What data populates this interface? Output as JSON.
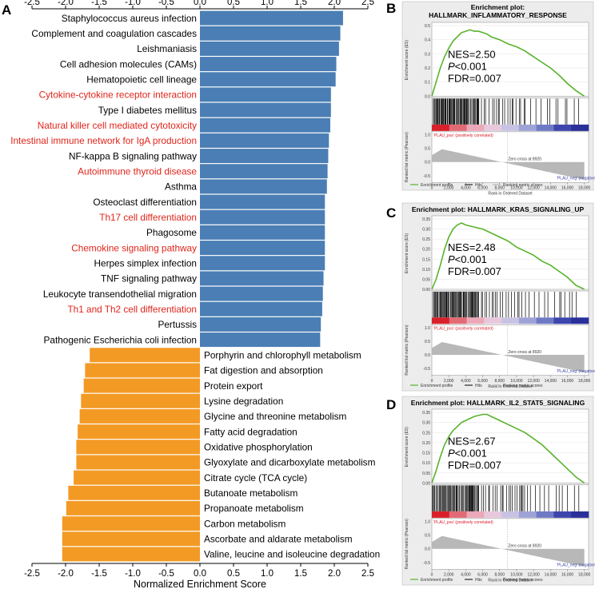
{
  "panel_labels": {
    "a": "A",
    "b": "B",
    "c": "C",
    "d": "D"
  },
  "chart_data": [
    {
      "type": "bar",
      "orientation": "horizontal",
      "panel": "A",
      "xlabel": "Normalized Enrichment Score",
      "xlim": [
        -2.5,
        2.5
      ],
      "xticks": [
        "-2.5",
        "-2.0",
        "-1.5",
        "-1.0",
        "-0.5",
        "0.0",
        "0.5",
        "1.0",
        "1.5",
        "2.0",
        "2.5"
      ],
      "categories": [
        "Staphylococcus aureus infection",
        "Complement and coagulation cascades",
        "Leishmaniasis",
        "Cell adhesion molecules (CAMs)",
        "Hematopoietic cell lineage",
        "Cytokine-cytokine receptor interaction",
        "Type I diabetes mellitus",
        "Natural killer cell mediated cytotoxicity",
        "Intestinal immune network for IgA production",
        "NF-kappa B signaling pathway",
        "Autoimmune thyroid disease",
        "Asthma",
        "Osteoclast differentiation",
        "Th17 cell differentiation",
        "Phagosome",
        "Chemokine signaling pathway",
        "Herpes simplex infection",
        "TNF signaling pathway",
        "Leukocyte transendothelial migration",
        "Th1 and Th2 cell differentiation",
        "Pertussis",
        "Pathogenic Escherichia coli infection",
        "Porphyrin and chlorophyll metabolism",
        "Fat digestion and absorption",
        "Protein export",
        "Lysine degradation",
        "Glycine and threonine metabolism",
        "Fatty acid degradation",
        "Oxidative phosphorylation",
        "Glyoxylate and dicarboxylate metabolism",
        "Citrate cycle (TCA cycle)",
        "Butanoate metabolism",
        "Propanoate metabolism",
        "Carbon metabolism",
        "Ascorbate and aldarate metabolism",
        "Valine, leucine and isoleucine degradation"
      ],
      "values": [
        2.13,
        2.09,
        2.07,
        2.03,
        2.02,
        1.95,
        1.95,
        1.94,
        1.92,
        1.91,
        1.9,
        1.89,
        1.86,
        1.86,
        1.86,
        1.86,
        1.86,
        1.84,
        1.83,
        1.82,
        1.8,
        1.79,
        -1.64,
        -1.71,
        -1.73,
        -1.77,
        -1.79,
        -1.82,
        -1.84,
        -1.84,
        -1.88,
        -1.96,
        -1.99,
        -2.05,
        -2.05,
        -2.05
      ],
      "highlighted_red": [
        "Cytokine-cytokine receptor interaction",
        "Natural killer cell mediated cytotoxicity",
        "Intestinal immune network for IgA production",
        "Autoimmune thyroid disease",
        "Th17 cell differentiation",
        "Chemokine signaling pathway",
        "Th1 and Th2 cell differentiation"
      ],
      "colors": {
        "positive": "#4a7eb5",
        "negative": "#f39a25",
        "highlight_text": "#e0251b",
        "normal_text": "#000000"
      }
    },
    {
      "type": "line",
      "panel": "B",
      "title": "Enrichment plot:",
      "subtitle": "HALLMARK_INFLAMMATORY_RESPONSE",
      "ylabel": "Enrichment score (ES)",
      "yticks": [
        "0.5",
        "0.4",
        "0.3",
        "0.2",
        "0.1",
        "0.0"
      ],
      "ylim": [
        0,
        0.5
      ],
      "x": [
        0,
        500,
        1000,
        1500,
        2000,
        2500,
        3000,
        3500,
        4000,
        4500,
        5000,
        5500,
        6000,
        6500,
        7000,
        8000,
        9000,
        10000,
        11000,
        12000,
        13000,
        14000,
        15000,
        16000,
        17000,
        18000
      ],
      "y": [
        0,
        0.1,
        0.2,
        0.28,
        0.34,
        0.39,
        0.42,
        0.45,
        0.46,
        0.47,
        0.46,
        0.46,
        0.45,
        0.44,
        0.42,
        0.4,
        0.37,
        0.35,
        0.32,
        0.28,
        0.24,
        0.2,
        0.15,
        0.09,
        0.04,
        0
      ],
      "stats": {
        "nes": "NES=2.50",
        "p_prefix": "P",
        "p_value": "<0.001",
        "fdr": "FDR=0.007"
      },
      "pos_label": "'PLAU_pos' (positively correlated)",
      "neg_label": "'PLAU_neg' (negatively correlated)",
      "zero_cross": "Zero cross at 8920",
      "metric_ylabel": "Ranked list metric (Pearson)",
      "metric_yticks": [
        "1.0",
        "0.5",
        "0.0",
        "-0.5"
      ],
      "xlabel": "Rank in Ordered Dataset",
      "xticks": [
        "0",
        "2,000",
        "4,000",
        "6,000",
        "8,000",
        "10,000",
        "12,000",
        "14,000",
        "16,000",
        "18,000"
      ],
      "legend": [
        "Enrichment profile",
        "Hits",
        "Ranking metric scores"
      ]
    },
    {
      "type": "line",
      "panel": "C",
      "title": "Enrichment plot: HALLMARK_KRAS_SIGNALING_UP",
      "ylabel": "Enrichment score (ES)",
      "yticks": [
        "0.35",
        "0.30",
        "0.25",
        "0.20",
        "0.15",
        "0.10",
        "0.05",
        "0.00"
      ],
      "ylim": [
        0,
        0.35
      ],
      "x": [
        0,
        500,
        1000,
        1500,
        2000,
        2500,
        3000,
        3500,
        4000,
        5000,
        6000,
        7000,
        8000,
        9000,
        10000,
        11000,
        12000,
        13000,
        14000,
        15000,
        16000,
        17000,
        18000
      ],
      "y": [
        0,
        0.05,
        0.12,
        0.2,
        0.26,
        0.3,
        0.32,
        0.33,
        0.32,
        0.31,
        0.3,
        0.28,
        0.26,
        0.24,
        0.21,
        0.19,
        0.17,
        0.14,
        0.12,
        0.09,
        0.06,
        0.02,
        0
      ],
      "stats": {
        "nes": "NES=2.48",
        "p_prefix": "P",
        "p_value": "<0.001",
        "fdr": "FDR=0.007"
      },
      "pos_label": "'PLAU_pos' (positively correlated)",
      "neg_label": "'PLAU_neg' (negatively correlated)",
      "zero_cross": "Zero cross at 8920",
      "metric_ylabel": "Ranked list metric (Pearson)",
      "metric_yticks": [
        "1.0",
        "0.5",
        "0.0",
        "-0.5"
      ],
      "xlabel": "Rank in Ordered Dataset",
      "xticks": [
        "0",
        "2,000",
        "4,000",
        "6,000",
        "8,000",
        "10,000",
        "12,000",
        "14,000",
        "16,000",
        "18,000"
      ],
      "legend": [
        "Enrichment profile",
        "Hits",
        "Ranking metric scores"
      ]
    },
    {
      "type": "line",
      "panel": "D",
      "title": "Enrichment plot: HALLMARK_IL2_STAT5_SIGNALING",
      "ylabel": "Enrichment score (ES)",
      "yticks": [
        "0.35",
        "0.30",
        "0.25",
        "0.20",
        "0.15",
        "0.10",
        "0.05",
        "0.00"
      ],
      "ylim": [
        0,
        0.35
      ],
      "x": [
        0,
        500,
        1000,
        1500,
        2000,
        2500,
        3000,
        3500,
        4000,
        5000,
        6000,
        6500,
        7000,
        8000,
        9000,
        10000,
        11000,
        12000,
        13000,
        14000,
        15000,
        16000,
        17000,
        18000
      ],
      "y": [
        0,
        0.06,
        0.13,
        0.19,
        0.23,
        0.26,
        0.28,
        0.3,
        0.31,
        0.33,
        0.34,
        0.34,
        0.33,
        0.31,
        0.29,
        0.27,
        0.25,
        0.22,
        0.19,
        0.15,
        0.11,
        0.07,
        0.03,
        0
      ],
      "stats": {
        "nes": "NES=2.67",
        "p_prefix": "P",
        "p_value": "<0.001",
        "fdr": "FDR=0.007"
      },
      "pos_label": "'PLAU_pos' (positively correlated)",
      "neg_label": "'PLAU_neg' (negatively correlated)",
      "zero_cross": "Zero cross at 8920",
      "metric_ylabel": "Ranked list metric (Pearson)",
      "metric_yticks": [
        "1.0",
        "0.5",
        "0.0",
        "-0.5"
      ],
      "xlabel": "Rank in Ordered Dataset",
      "xticks": [
        "0",
        "2,000",
        "4,000",
        "6,000",
        "8,000",
        "10,000",
        "12,000",
        "14,000",
        "16,000",
        "18,000"
      ],
      "legend": [
        "Enrichment profile",
        "Hits",
        "Ranking metric scores"
      ]
    }
  ]
}
